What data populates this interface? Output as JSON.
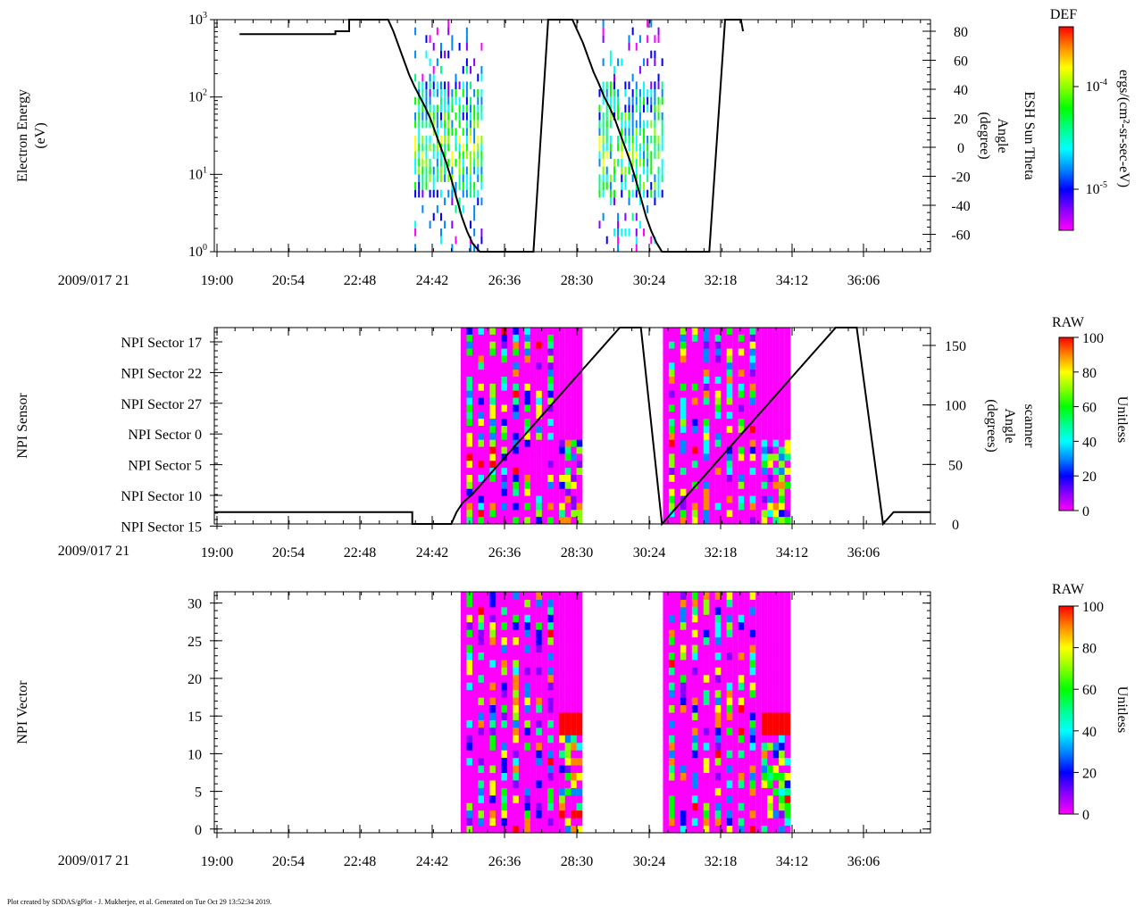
{
  "footer": "Plot created by SDDAS/gPlot - J. Mukherjee, et al.  Generated on Tue Oct 29 13:52:34 2019.",
  "colors": {
    "rainbow": [
      "#ff00ff",
      "#8800ff",
      "#0000ff",
      "#0088ff",
      "#00ffff",
      "#00ff88",
      "#00ff00",
      "#88ff00",
      "#ffff00",
      "#ff8800",
      "#ff0000"
    ]
  },
  "chart_data": [
    {
      "type": "heatmap",
      "name": "electron-energy-spectrogram",
      "date_label": "2009/017 21",
      "x_tick_labels": [
        "19:00",
        "20:54",
        "22:48",
        "24:42",
        "26:36",
        "28:30",
        "30:24",
        "32:18",
        "34:12",
        "36:06"
      ],
      "ylabel": [
        "Electron Energy",
        "(eV)"
      ],
      "y_scale": "log",
      "ylim": [
        1,
        1000
      ],
      "y_tick_labels": [
        {
          "base": "10",
          "exp": "0"
        },
        {
          "base": "10",
          "exp": "1"
        },
        {
          "base": "10",
          "exp": "2"
        },
        {
          "base": "10",
          "exp": "3"
        }
      ],
      "right_axis": {
        "label": [
          "ESH Sun Theta",
          "Angle",
          "(degree)"
        ],
        "range": [
          -72,
          88
        ],
        "tick_labels": [
          "80",
          "60",
          "40",
          "20",
          "0",
          "-20",
          "-40",
          "-60"
        ]
      },
      "colorbar": {
        "title": "DEF",
        "label": "ergs/(cm²-sr-sec-eV)",
        "tick_labels": [
          {
            "base": "10",
            "exp": "-4"
          },
          {
            "base": "10",
            "exp": "-5"
          }
        ]
      },
      "line_series": {
        "name": "ESH Sun Theta",
        "points": [
          [
            2.4,
            78
          ],
          [
            11.5,
            78
          ],
          [
            11.5,
            80
          ],
          [
            12.8,
            80
          ],
          [
            12.8,
            88
          ],
          [
            16.5,
            88
          ],
          [
            17,
            80
          ],
          [
            17.5,
            70
          ],
          [
            18,
            60
          ],
          [
            18.5,
            50
          ],
          [
            19,
            42
          ],
          [
            19.5,
            35
          ],
          [
            20,
            28
          ],
          [
            20.5,
            20
          ],
          [
            21,
            10
          ],
          [
            21.5,
            0
          ],
          [
            22,
            -10
          ],
          [
            22.5,
            -22
          ],
          [
            23,
            -35
          ],
          [
            23.5,
            -48
          ],
          [
            24,
            -58
          ],
          [
            24.5,
            -66
          ],
          [
            25.2,
            -72
          ],
          [
            30.3,
            -72
          ],
          [
            31.7,
            88
          ],
          [
            34,
            88
          ],
          [
            34.5,
            80
          ],
          [
            35,
            72
          ],
          [
            35.5,
            62
          ],
          [
            36,
            52
          ],
          [
            36.5,
            44
          ],
          [
            37,
            35
          ],
          [
            37.5,
            28
          ],
          [
            38,
            20
          ],
          [
            38.5,
            10
          ],
          [
            39,
            0
          ],
          [
            39.5,
            -10
          ],
          [
            40,
            -22
          ],
          [
            40.5,
            -35
          ],
          [
            41,
            -48
          ],
          [
            41.5,
            -58
          ],
          [
            42,
            -66
          ],
          [
            42.5,
            -72
          ],
          [
            47,
            -72
          ],
          [
            48.5,
            88
          ],
          [
            50,
            88
          ],
          [
            50.2,
            80
          ]
        ]
      },
      "data_columns": [
        {
          "x_start": 19.0,
          "x_end": 25.5
        },
        {
          "x_start": 36.5,
          "x_end": 42.5
        }
      ]
    },
    {
      "type": "heatmap",
      "name": "npi-sensor",
      "date_label": "2009/017 21",
      "x_tick_labels": [
        "19:00",
        "20:54",
        "22:48",
        "24:42",
        "26:36",
        "28:30",
        "30:24",
        "32:18",
        "34:12",
        "36:06"
      ],
      "ylabel": [
        "NPI Sensor"
      ],
      "y_categories": [
        "NPI Sector 17",
        "NPI Sector 22",
        "NPI Sector 27",
        "NPI Sector 0",
        "NPI Sector 5",
        "NPI Sector 10",
        "NPI Sector 15"
      ],
      "right_axis": {
        "label": [
          "scanner",
          "Angle",
          "(degrees)"
        ],
        "range": [
          0,
          165
        ],
        "tick_labels": [
          "150",
          "100",
          "50",
          "0"
        ]
      },
      "colorbar": {
        "title": "RAW",
        "label": "Unitless",
        "range": [
          0,
          100
        ],
        "tick_labels": [
          "100",
          "80",
          "60",
          "40",
          "20",
          "0"
        ]
      },
      "line_series": {
        "name": "scanner angle",
        "points": [
          [
            0,
            10
          ],
          [
            18.8,
            10
          ],
          [
            18.8,
            0
          ],
          [
            22.5,
            0
          ],
          [
            23,
            10
          ],
          [
            23.6,
            18
          ],
          [
            24.5,
            25
          ],
          [
            25.5,
            35
          ],
          [
            26.5,
            45
          ],
          [
            27.5,
            55
          ],
          [
            28.5,
            65
          ],
          [
            29.5,
            75
          ],
          [
            30.5,
            85
          ],
          [
            31.5,
            95
          ],
          [
            32.5,
            105
          ],
          [
            33.5,
            115
          ],
          [
            34.5,
            125
          ],
          [
            35.5,
            135
          ],
          [
            36.5,
            145
          ],
          [
            37.5,
            155
          ],
          [
            38.5,
            165
          ],
          [
            40.5,
            165
          ],
          [
            42.5,
            0
          ],
          [
            42.5,
            0
          ],
          [
            43.5,
            10
          ],
          [
            44.5,
            20
          ],
          [
            45.5,
            30
          ],
          [
            46.5,
            40
          ],
          [
            47.5,
            50
          ],
          [
            48.5,
            60
          ],
          [
            49.5,
            70
          ],
          [
            50.5,
            80
          ],
          [
            51.5,
            90
          ],
          [
            52.5,
            100
          ],
          [
            53.5,
            110
          ],
          [
            54.5,
            120
          ],
          [
            55.5,
            130
          ],
          [
            56.5,
            140
          ],
          [
            57.5,
            150
          ],
          [
            58.5,
            160
          ],
          [
            59,
            165
          ],
          [
            61,
            165
          ],
          [
            63.5,
            0
          ],
          [
            64.5,
            10
          ],
          [
            68,
            10
          ]
        ]
      },
      "data_columns": [
        {
          "x_start": 23.4,
          "x_end": 34.9
        },
        {
          "x_start": 42.6,
          "x_end": 54.3
        }
      ]
    },
    {
      "type": "heatmap",
      "name": "npi-vector",
      "date_label": "2009/017 21",
      "x_tick_labels": [
        "19:00",
        "20:54",
        "22:48",
        "24:42",
        "26:36",
        "28:30",
        "30:24",
        "32:18",
        "34:12",
        "36:06"
      ],
      "ylabel": [
        "NPI Vector"
      ],
      "ylim": [
        -0.5,
        31.5
      ],
      "y_tick_labels": [
        "30",
        "25",
        "20",
        "15",
        "10",
        "5",
        "0"
      ],
      "colorbar": {
        "title": "RAW",
        "label": "Unitless",
        "range": [
          0,
          100
        ],
        "tick_labels": [
          "100",
          "80",
          "60",
          "40",
          "20",
          "0"
        ]
      },
      "data_columns": [
        {
          "x_start": 23.4,
          "x_end": 34.9
        },
        {
          "x_start": 42.6,
          "x_end": 54.3
        }
      ]
    }
  ]
}
